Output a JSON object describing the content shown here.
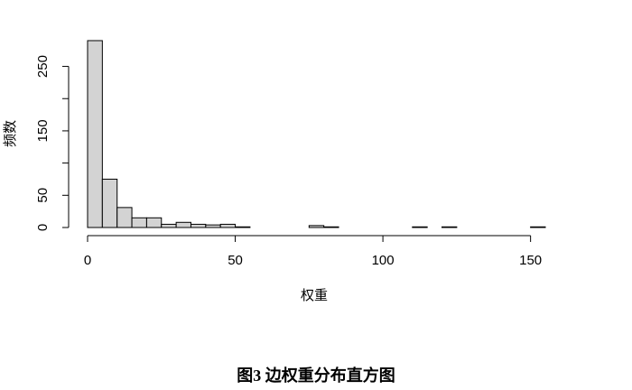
{
  "caption": "图3 边权重分布直方图",
  "chart_data": {
    "type": "histogram",
    "xlabel": "权重",
    "ylabel": "频数",
    "bin_width": 5,
    "bins": [
      {
        "x0": 0,
        "x1": 5,
        "count": 290
      },
      {
        "x0": 5,
        "x1": 10,
        "count": 75
      },
      {
        "x0": 10,
        "x1": 15,
        "count": 31
      },
      {
        "x0": 15,
        "x1": 20,
        "count": 15
      },
      {
        "x0": 20,
        "x1": 25,
        "count": 15
      },
      {
        "x0": 25,
        "x1": 30,
        "count": 5
      },
      {
        "x0": 30,
        "x1": 35,
        "count": 8
      },
      {
        "x0": 35,
        "x1": 40,
        "count": 5
      },
      {
        "x0": 40,
        "x1": 45,
        "count": 4
      },
      {
        "x0": 45,
        "x1": 50,
        "count": 5
      },
      {
        "x0": 50,
        "x1": 55,
        "count": 1
      },
      {
        "x0": 55,
        "x1": 60,
        "count": 0
      },
      {
        "x0": 60,
        "x1": 65,
        "count": 0
      },
      {
        "x0": 65,
        "x1": 70,
        "count": 0
      },
      {
        "x0": 70,
        "x1": 75,
        "count": 0
      },
      {
        "x0": 75,
        "x1": 80,
        "count": 3
      },
      {
        "x0": 80,
        "x1": 85,
        "count": 1
      },
      {
        "x0": 85,
        "x1": 90,
        "count": 0
      },
      {
        "x0": 90,
        "x1": 95,
        "count": 0
      },
      {
        "x0": 95,
        "x1": 100,
        "count": 0
      },
      {
        "x0": 100,
        "x1": 105,
        "count": 0
      },
      {
        "x0": 105,
        "x1": 110,
        "count": 0
      },
      {
        "x0": 110,
        "x1": 115,
        "count": 1
      },
      {
        "x0": 115,
        "x1": 120,
        "count": 0
      },
      {
        "x0": 120,
        "x1": 125,
        "count": 1
      },
      {
        "x0": 125,
        "x1": 130,
        "count": 0
      },
      {
        "x0": 130,
        "x1": 135,
        "count": 0
      },
      {
        "x0": 135,
        "x1": 140,
        "count": 0
      },
      {
        "x0": 140,
        "x1": 145,
        "count": 0
      },
      {
        "x0": 145,
        "x1": 150,
        "count": 0
      },
      {
        "x0": 150,
        "x1": 155,
        "count": 1
      }
    ],
    "xlim": [
      0,
      155
    ],
    "ylim": [
      0,
      290
    ],
    "x_ticks": [
      0,
      50,
      100,
      150
    ],
    "y_ticks": [
      0,
      50,
      100,
      150,
      200,
      250
    ],
    "y_tick_labels": [
      "0",
      "50",
      "",
      "150",
      "",
      "250"
    ],
    "bar_color": "#d3d3d3",
    "bar_stroke": "#000000",
    "grid": false
  }
}
